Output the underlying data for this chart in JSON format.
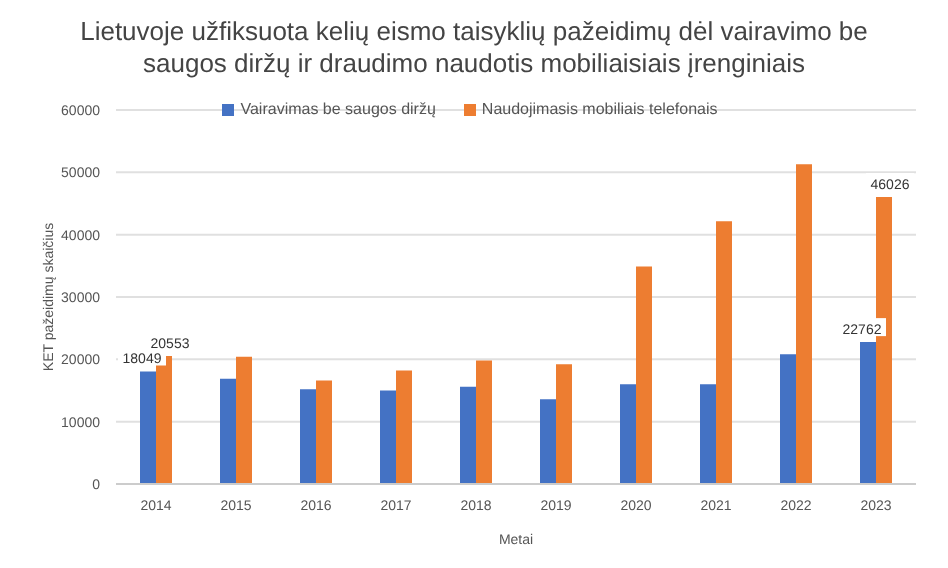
{
  "chart_data": {
    "type": "bar",
    "title": "Lietuvoje užfiksuota kelių eismo taisyklių pažeidimų dėl vairavimo be saugos diržų ir draudimo naudotis mobiliaisiais įrenginiais",
    "xlabel": "Metai",
    "ylabel": "KET pažeidimų skaičius",
    "categories": [
      "2014",
      "2015",
      "2016",
      "2017",
      "2018",
      "2019",
      "2020",
      "2021",
      "2022",
      "2023"
    ],
    "series": [
      {
        "name": "Vairavimas be saugos diržų",
        "color": "#4472c4",
        "values": [
          18049,
          16900,
          15200,
          15000,
          15600,
          13600,
          16000,
          16000,
          20800,
          22762
        ],
        "value_labels": [
          "18049",
          null,
          null,
          null,
          null,
          null,
          null,
          null,
          null,
          "22762"
        ]
      },
      {
        "name": "Naudojimasis  mobiliais telefonais",
        "color": "#ed7d31",
        "values": [
          20553,
          20400,
          16600,
          18200,
          19800,
          19200,
          34900,
          42150,
          51300,
          46026
        ],
        "value_labels": [
          "20553",
          null,
          null,
          null,
          null,
          null,
          null,
          null,
          null,
          "46026"
        ]
      }
    ],
    "ylim": [
      0,
      60000
    ],
    "yticks": [
      0,
      10000,
      20000,
      30000,
      40000,
      50000,
      60000
    ],
    "grid": "y",
    "legend": "top"
  }
}
